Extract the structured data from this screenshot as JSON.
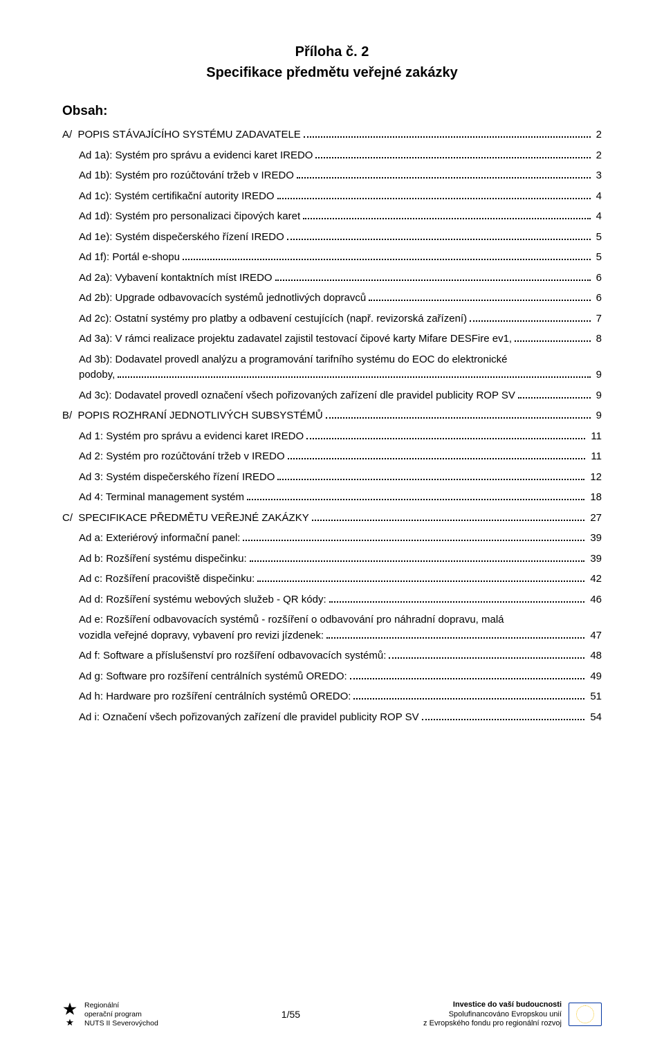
{
  "colors": {
    "text": "#000000",
    "background": "#ffffff",
    "leader": "#000000",
    "eu_blue": "#0033a0",
    "eu_gold": "#f5c518"
  },
  "typography": {
    "body_fontsize": 15,
    "title_fontsize": 20,
    "footer_small": 11
  },
  "title": {
    "line1": "Příloha č. 2",
    "line2": "Specifikace předmětu veřejné zakázky"
  },
  "obsah_label": "Obsah:",
  "toc": [
    {
      "indent": 0,
      "text": "A/  POPIS STÁVAJÍCÍHO SYSTÉMU ZADAVATELE",
      "page": "2"
    },
    {
      "indent": 1,
      "text": "Ad 1a): Systém pro správu a evidenci karet IREDO",
      "page": "2"
    },
    {
      "indent": 1,
      "text": "Ad 1b): Systém pro rozúčtování tržeb v IREDO",
      "page": "3"
    },
    {
      "indent": 1,
      "text": "Ad 1c): Systém certifikační autority IREDO",
      "page": "4"
    },
    {
      "indent": 1,
      "text": "Ad 1d): Systém pro personalizaci čipových karet",
      "page": "4"
    },
    {
      "indent": 1,
      "text": "Ad 1e): Systém dispečerského řízení IREDO",
      "page": "5"
    },
    {
      "indent": 1,
      "text": "Ad 1f): Portál e-shopu",
      "page": "5"
    },
    {
      "indent": 1,
      "text": "Ad 2a): Vybavení kontaktních míst IREDO",
      "page": "6"
    },
    {
      "indent": 1,
      "text": "Ad 2b): Upgrade odbavovacích systémů jednotlivých dopravců",
      "page": "6"
    },
    {
      "indent": 1,
      "text": "Ad 2c): Ostatní systémy pro platby a odbavení cestujících (např. revizorská zařízení)",
      "page": "7"
    },
    {
      "indent": 1,
      "text": "Ad 3a): V rámci realizace projektu zadavatel zajistil testovací čipové karty Mifare DESFire ev1,",
      "page": "8"
    },
    {
      "indent": 1,
      "wrap_first": "Ad 3b): Dodavatel provedl analýzu a programování tarifního systému do EOC do elektronické",
      "wrap_last": "podoby,",
      "page": "9"
    },
    {
      "indent": 1,
      "text": "Ad 3c): Dodavatel provedl označení všech pořizovaných zařízení dle pravidel publicity ROP SV",
      "page": "9"
    },
    {
      "indent": 0,
      "text": "B/  POPIS ROZHRANÍ JEDNOTLIVÝCH SUBSYSTÉMŮ",
      "page": "9"
    },
    {
      "indent": 1,
      "text": "Ad 1: Systém pro správu a evidenci karet IREDO",
      "page": "11"
    },
    {
      "indent": 1,
      "text": "Ad 2: Systém pro rozúčtování tržeb v IREDO",
      "page": "11"
    },
    {
      "indent": 1,
      "text": "Ad 3: Systém dispečerského řízení IREDO",
      "page": "12"
    },
    {
      "indent": 1,
      "text": "Ad 4: Terminal management systém",
      "page": "18"
    },
    {
      "indent": 0,
      "text": "C/  SPECIFIKACE PŘEDMĚTU VEŘEJNÉ ZAKÁZKY",
      "page": "27"
    },
    {
      "indent": 1,
      "text": "Ad a: Exteriérový informační panel:",
      "page": "39"
    },
    {
      "indent": 1,
      "text": "Ad b: Rozšíření systému dispečinku:",
      "page": "39"
    },
    {
      "indent": 1,
      "text": "Ad c: Rozšíření pracoviště dispečinku:",
      "page": "42"
    },
    {
      "indent": 1,
      "text": "Ad d: Rozšíření systému webových služeb - QR kódy:",
      "page": "46"
    },
    {
      "indent": 1,
      "wrap_first": "Ad e: Rozšíření odbavovacích systémů - rozšíření o odbavování pro náhradní dopravu, malá",
      "wrap_last": "vozidla veřejné dopravy, vybavení pro revizi jízdenek:",
      "page": "47"
    },
    {
      "indent": 1,
      "text": "Ad f: Software a příslušenství pro rozšíření odbavovacích systémů:",
      "page": "48"
    },
    {
      "indent": 1,
      "text": "Ad g: Software pro rozšíření centrálních systémů OREDO:",
      "page": "49"
    },
    {
      "indent": 1,
      "text": "Ad h: Hardware pro rozšíření centrálních systémů OREDO:",
      "page": "51"
    },
    {
      "indent": 1,
      "text": "Ad i: Označení všech pořizovaných zařízení dle pravidel publicity ROP SV",
      "page": "54"
    }
  ],
  "last_page_after_toc": "55",
  "footer": {
    "nuts": {
      "l1": "Regionální",
      "l2": "operační program",
      "l3": "NUTS II Severovýchod"
    },
    "page_label": "1/55",
    "eu": {
      "l1": "Investice do vaší budoucnosti",
      "l2": "Spolufinancováno Evropskou unií",
      "l3": "z Evropského fondu pro regionální rozvoj"
    }
  }
}
